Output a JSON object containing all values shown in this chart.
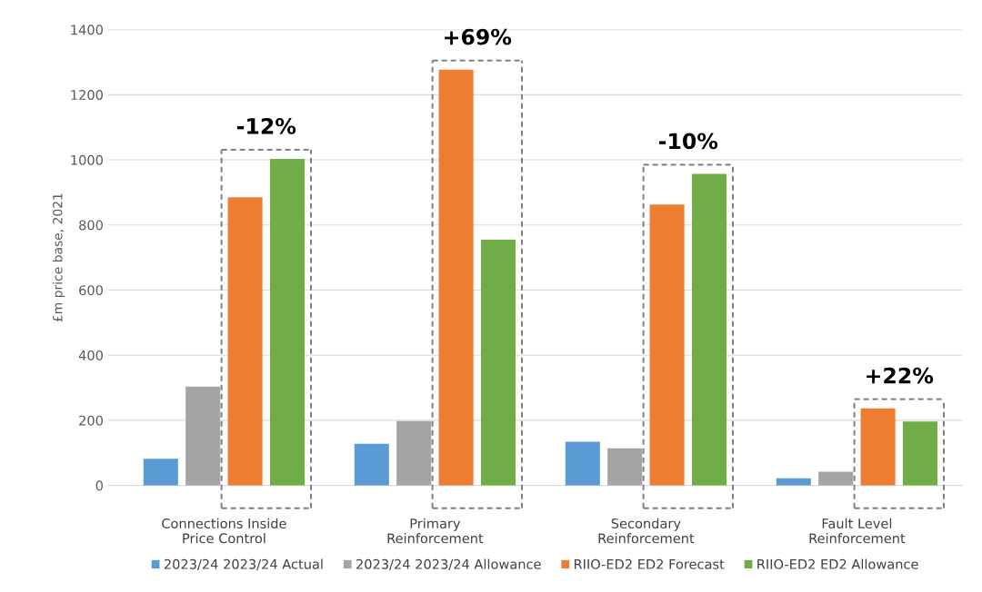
{
  "chart_data": {
    "type": "bar",
    "ylabel": "£m price base, 2021",
    "categories": [
      "Connections Inside\nPrice Control",
      "Primary\nReinforcement",
      "Secondary\nReinforcement",
      "Fault Level\nReinforcement"
    ],
    "series": [
      {
        "name": "2023/24 2023/24 Actual",
        "color": "#5b9bd5",
        "values": [
          82,
          128,
          134,
          22
        ]
      },
      {
        "name": "2023/24 2023/24 Allowance",
        "color": "#a5a5a5",
        "values": [
          304,
          198,
          114,
          42
        ]
      },
      {
        "name": "RIIO-ED2 ED2 Forecast",
        "color": "#ed7d31",
        "values": [
          885,
          1277,
          863,
          237
        ]
      },
      {
        "name": "RIIO-ED2 ED2 Allowance",
        "color": "#70ad47",
        "values": [
          1003,
          755,
          957,
          196
        ]
      }
    ],
    "annotations": [
      "-12%",
      "+69%",
      "-10%",
      "+22%"
    ],
    "ylim": [
      0,
      1400
    ],
    "yticks": [
      0,
      200,
      400,
      600,
      800,
      1000,
      1200,
      1400
    ],
    "grid": "y",
    "legend": "bottom"
  }
}
